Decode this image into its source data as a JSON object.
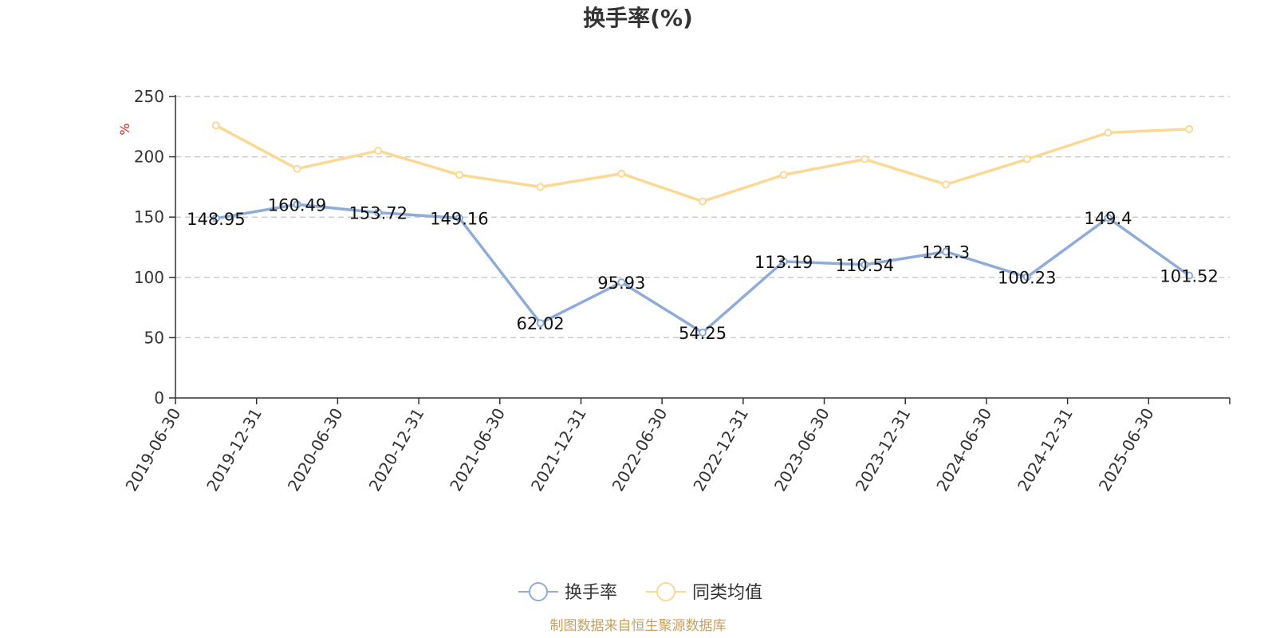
{
  "chart_data": {
    "type": "line",
    "title": "换手率(%)",
    "ylabel": "%",
    "ylim": [
      0,
      250
    ],
    "yticks": [
      "0",
      "50",
      "100",
      "150",
      "200",
      "250"
    ],
    "grid": true,
    "legend_position": "bottom",
    "categories": [
      "2019-06-30",
      "2019-12-31",
      "2020-06-30",
      "2020-12-31",
      "2021-06-30",
      "2021-12-31",
      "2022-06-30",
      "2022-12-31",
      "2023-06-30",
      "2023-12-31",
      "2024-06-30",
      "2024-12-31",
      "2025-06-30"
    ],
    "series": [
      {
        "name": "换手率",
        "color": "#8eacd9",
        "values": [
          148.95,
          160.49,
          153.72,
          149.16,
          62.02,
          95.93,
          54.25,
          113.19,
          110.54,
          121.3,
          100.23,
          149.4,
          101.52
        ],
        "labels": [
          "148.95",
          "160.49",
          "153.72",
          "149.16",
          "62.02",
          "95.93",
          "54.25",
          "113.19",
          "110.54",
          "121.3",
          "100.23",
          "149.4",
          "101.52"
        ]
      },
      {
        "name": "同类均值",
        "color": "#fbd894",
        "values": [
          226,
          190,
          205,
          185,
          175,
          186,
          163,
          185,
          198,
          177,
          198,
          220,
          223
        ]
      }
    ]
  },
  "source_text": "制图数据来自恒生聚源数据库",
  "colors": {
    "axis": "#333333",
    "grid": "#cccccc",
    "ylabel": "#e02020",
    "source": "#c8a060"
  }
}
